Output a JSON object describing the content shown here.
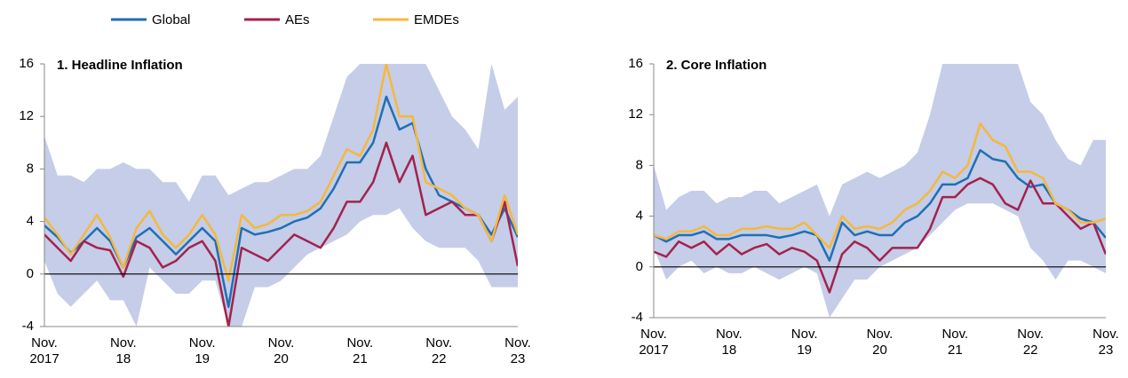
{
  "chart_data": [
    {
      "type": "line",
      "title": "1. Headline Inflation",
      "categories": [
        "Nov. 2017",
        null,
        null,
        null,
        null,
        null,
        "Nov. 18",
        null,
        null,
        null,
        null,
        null,
        "Nov. 19",
        null,
        null,
        null,
        null,
        null,
        "Nov. 20",
        null,
        null,
        null,
        null,
        null,
        "Nov. 21",
        null,
        null,
        null,
        null,
        null,
        "Nov. 22",
        null,
        null,
        null,
        null,
        null,
        "Nov. 23"
      ],
      "series": [
        {
          "name": "Global",
          "color": "#1f6fb5",
          "values": [
            3.7,
            2.8,
            1.6,
            2.5,
            3.5,
            2.5,
            0.5,
            2.8,
            3.5,
            2.5,
            1.5,
            2.5,
            3.5,
            2.5,
            -2.5,
            3.5,
            3.0,
            3.2,
            3.5,
            4.0,
            4.3,
            5.0,
            6.5,
            8.5,
            8.5,
            10.0,
            13.5,
            11.0,
            11.5,
            8.0,
            6.0,
            5.5,
            5.0,
            4.5,
            3.0,
            5.0,
            2.8
          ]
        },
        {
          "name": "AEs",
          "color": "#a3224e",
          "values": [
            3.0,
            2.0,
            1.0,
            2.5,
            2.0,
            1.8,
            -0.2,
            2.5,
            2.0,
            0.5,
            1.0,
            2.0,
            2.5,
            1.0,
            -4.0,
            2.0,
            1.5,
            1.0,
            2.0,
            3.0,
            2.5,
            2.0,
            3.5,
            5.5,
            5.5,
            7.0,
            10.0,
            7.0,
            9.0,
            4.5,
            5.0,
            5.5,
            4.5,
            4.5,
            2.5,
            5.5,
            0.6
          ]
        },
        {
          "name": "EMDEs",
          "color": "#f5b83d",
          "values": [
            4.3,
            3.0,
            1.5,
            3.0,
            4.5,
            2.8,
            0.5,
            3.5,
            4.8,
            3.0,
            2.0,
            3.0,
            4.5,
            3.0,
            -0.5,
            4.5,
            3.5,
            3.8,
            4.5,
            4.5,
            4.8,
            5.5,
            7.5,
            9.5,
            9.0,
            11.0,
            16.0,
            12.0,
            12.0,
            7.0,
            6.5,
            6.0,
            5.0,
            4.5,
            2.5,
            6.0,
            3.0
          ]
        }
      ],
      "band": {
        "color": "#c5cde8",
        "lower": [
          1.0,
          -1.5,
          -2.5,
          -1.5,
          -0.5,
          -2.0,
          -2.0,
          -4.0,
          0.5,
          -0.5,
          -1.5,
          -1.5,
          -0.5,
          -0.5,
          -4.0,
          -4.0,
          -1.0,
          -1.0,
          -0.5,
          0.5,
          1.5,
          2.0,
          2.5,
          3.0,
          4.0,
          4.5,
          4.5,
          5.0,
          3.5,
          2.5,
          2.0,
          2.0,
          2.0,
          1.0,
          -1.0,
          -1.0,
          -1.0
        ],
        "upper": [
          10.5,
          7.5,
          7.5,
          7.0,
          8.0,
          8.0,
          8.5,
          8.0,
          8.0,
          7.0,
          7.0,
          5.5,
          7.5,
          7.5,
          6.0,
          6.5,
          7.0,
          7.0,
          7.5,
          8.0,
          8.0,
          9.0,
          12.0,
          15.0,
          16,
          16,
          16,
          16,
          16,
          16,
          14.0,
          12.0,
          11.0,
          9.5,
          16,
          12.5,
          13.5
        ]
      },
      "ylim": [
        -4,
        16
      ],
      "yticks": [
        -4,
        0,
        4,
        8,
        12,
        16
      ]
    },
    {
      "type": "line",
      "title": "2. Core Inflation",
      "categories": [
        "Nov. 2017",
        null,
        null,
        null,
        null,
        null,
        "Nov. 18",
        null,
        null,
        null,
        null,
        null,
        "Nov. 19",
        null,
        null,
        null,
        null,
        null,
        "Nov. 20",
        null,
        null,
        null,
        null,
        null,
        "Nov. 21",
        null,
        null,
        null,
        null,
        null,
        "Nov. 22",
        null,
        null,
        null,
        null,
        null,
        "Nov. 23"
      ],
      "series": [
        {
          "name": "Global",
          "color": "#1f6fb5",
          "values": [
            2.5,
            2.0,
            2.5,
            2.5,
            2.8,
            2.2,
            2.2,
            2.5,
            2.5,
            2.5,
            2.3,
            2.5,
            2.8,
            2.5,
            0.5,
            3.5,
            2.5,
            2.8,
            2.5,
            2.5,
            3.5,
            4.0,
            5.0,
            6.5,
            6.5,
            7.0,
            9.2,
            8.5,
            8.3,
            7.0,
            6.3,
            6.5,
            5.0,
            4.5,
            3.8,
            3.5,
            2.3
          ]
        },
        {
          "name": "AEs",
          "color": "#a3224e",
          "values": [
            1.2,
            0.8,
            2.0,
            1.5,
            2.0,
            1.0,
            1.8,
            1.0,
            1.5,
            1.8,
            1.0,
            1.5,
            1.2,
            0.5,
            -2.0,
            1.0,
            2.0,
            1.5,
            0.5,
            1.5,
            1.5,
            1.5,
            3.0,
            5.5,
            5.5,
            6.5,
            7.0,
            6.5,
            5.0,
            4.5,
            6.8,
            5.0,
            5.0,
            4.0,
            3.0,
            3.5,
            1.0
          ]
        },
        {
          "name": "EMDEs",
          "color": "#f5b83d",
          "values": [
            2.5,
            2.2,
            2.8,
            2.8,
            3.2,
            2.5,
            2.5,
            3.0,
            3.0,
            3.2,
            3.0,
            3.0,
            3.5,
            2.5,
            1.5,
            4.0,
            3.0,
            3.2,
            3.0,
            3.5,
            4.5,
            5.0,
            6.0,
            7.5,
            7.0,
            8.0,
            11.3,
            10.0,
            9.5,
            7.5,
            7.5,
            7.0,
            5.0,
            4.5,
            3.5,
            3.5,
            3.8
          ]
        }
      ],
      "band": {
        "color": "#c5cde8",
        "lower": [
          1.5,
          -1.0,
          0.0,
          0.5,
          -0.5,
          0.0,
          -0.5,
          -0.5,
          0.0,
          -0.5,
          -1.0,
          -0.5,
          0.0,
          -0.5,
          -4.0,
          -2.5,
          -1.0,
          -1.0,
          0.0,
          0.5,
          1.0,
          1.5,
          2.5,
          3.5,
          4.5,
          5.0,
          5.0,
          5.0,
          4.5,
          4.0,
          1.5,
          0.5,
          -1.0,
          0.5,
          0.5,
          0.0,
          -0.5
        ],
        "upper": [
          8.0,
          4.5,
          5.5,
          6.0,
          6.0,
          5.0,
          5.5,
          5.5,
          6.0,
          6.0,
          5.0,
          5.5,
          6.0,
          6.5,
          4.0,
          6.5,
          7.0,
          7.5,
          7.0,
          7.5,
          8.0,
          9.0,
          12.0,
          16,
          16,
          16,
          16,
          16,
          16,
          16,
          13.0,
          12.0,
          10.0,
          8.5,
          8.0,
          10.0,
          10.0
        ]
      },
      "ylim": [
        -4,
        16
      ],
      "yticks": [
        -4,
        0,
        4,
        8,
        12,
        16
      ]
    }
  ]
}
